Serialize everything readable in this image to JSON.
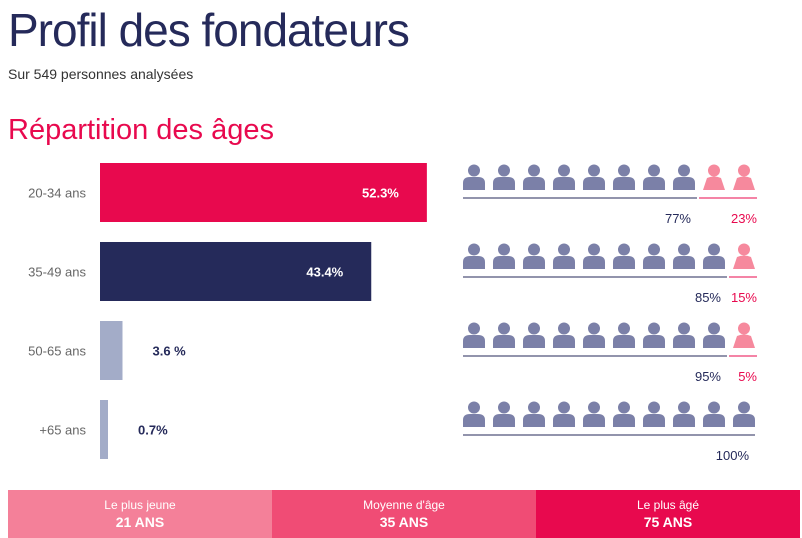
{
  "title": "Profil des fondateurs",
  "subtitle": "Sur 549 personnes analysées",
  "section_title": "Répartition des âges",
  "colors": {
    "pink": "#e8094e",
    "navy": "#252a5a",
    "gray": "#a3acc8",
    "person_male": "#7b80a8",
    "person_female": "#f6899d"
  },
  "chart_data": [
    {
      "type": "bar",
      "orientation": "horizontal",
      "categories": [
        "20-34 ans",
        "35-49 ans",
        "50-65 ans",
        "+65 ans"
      ],
      "values": [
        52.3,
        43.4,
        3.6,
        0.7
      ],
      "data_labels": [
        "52.3%",
        "43.4%",
        "3.6 %",
        "0.7%"
      ],
      "bar_colors": [
        "#e8094e",
        "#252a5a",
        "#a3acc8",
        "#a3acc8"
      ],
      "xlim": [
        0,
        100
      ]
    },
    {
      "type": "pictogram",
      "categories": [
        "20-34 ans",
        "35-49 ans",
        "50-65 ans",
        "+65 ans"
      ],
      "series": [
        {
          "values": [
            77,
            85,
            95,
            100
          ],
          "labels": [
            "77%",
            "85%",
            "95%",
            "100%"
          ],
          "icons": [
            8,
            9,
            9,
            10
          ],
          "color": "#7b80a8"
        },
        {
          "values": [
            23,
            15,
            5,
            0
          ],
          "labels": [
            "23%",
            "15%",
            "5%",
            ""
          ],
          "icons": [
            2,
            1,
            1,
            0
          ],
          "color": "#f6899d"
        }
      ],
      "icons_per_row": 10
    }
  ],
  "footer": {
    "youngest": {
      "label": "Le plus jeune",
      "value": "21 ANS"
    },
    "average": {
      "label": "Moyenne d'âge",
      "value": "35 ANS"
    },
    "oldest": {
      "label": "Le plus âgé",
      "value": "75 ANS"
    }
  }
}
